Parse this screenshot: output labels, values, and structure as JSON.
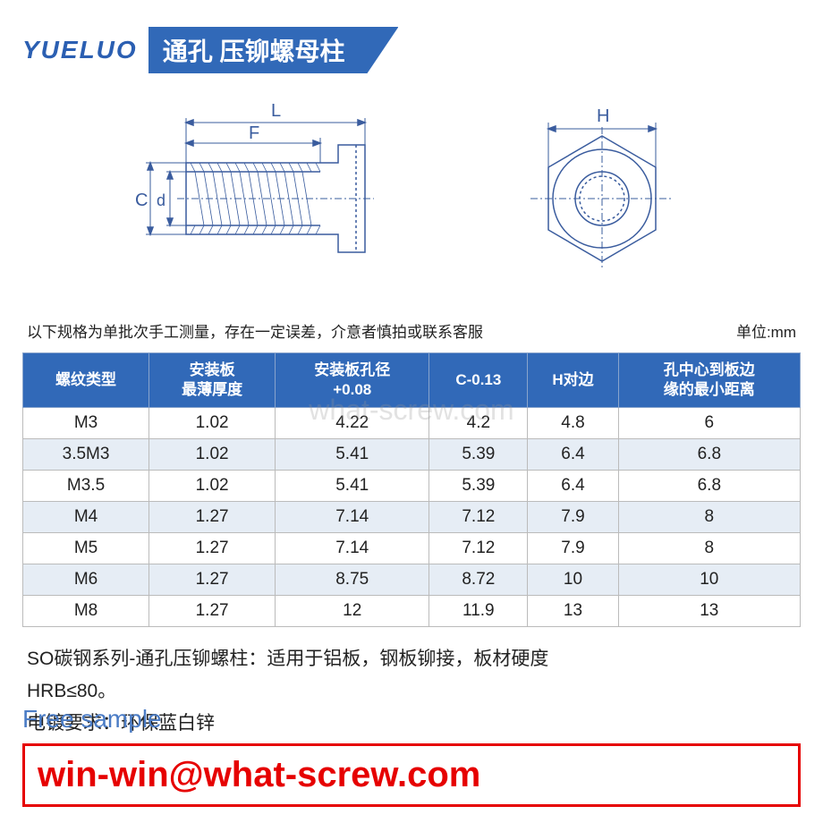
{
  "logo_text": "YUELUO",
  "banner_title": "通孔 压铆螺母柱",
  "diagram": {
    "labels": {
      "L": "L",
      "F": "F",
      "C": "C",
      "d": "d",
      "H": "H"
    },
    "stroke_color": "#3a5c9e"
  },
  "note_text": "以下规格为单批次手工测量，存在一定误差，介意者慎拍或联系客服",
  "unit_label": "单位:mm",
  "table": {
    "columns": [
      "螺纹类型",
      "安装板\n最薄厚度",
      "安装板孔径\n+0.08",
      "C-0.13",
      "H对边",
      "孔中心到板边\n缘的最小距离"
    ],
    "rows": [
      [
        "M3",
        "1.02",
        "4.22",
        "4.2",
        "4.8",
        "6"
      ],
      [
        "3.5M3",
        "1.02",
        "5.41",
        "5.39",
        "6.4",
        "6.8"
      ],
      [
        "M3.5",
        "1.02",
        "5.41",
        "5.39",
        "6.4",
        "6.8"
      ],
      [
        "M4",
        "1.27",
        "7.14",
        "7.12",
        "7.9",
        "8"
      ],
      [
        "M5",
        "1.27",
        "7.14",
        "7.12",
        "7.9",
        "8"
      ],
      [
        "M6",
        "1.27",
        "8.75",
        "8.72",
        "10",
        "10"
      ],
      [
        "M8",
        "1.27",
        "12",
        "11.9",
        "13",
        "13"
      ]
    ],
    "header_bg": "#3169b8",
    "row_alt_bg": "#e6edf5"
  },
  "desc_line1": "SO碳钢系列-通孔压铆螺柱：适用于铝板，钢板铆接，板材硬度",
  "desc_line2": "HRB≤80。",
  "desc_line3": "电镀要求：环保蓝白锌",
  "watermark": "what-screw.com",
  "free_sample": "Free sample",
  "email": "win-win@what-screw.com",
  "colors": {
    "brand_blue": "#3169b8",
    "logo_blue": "#2b5fb2",
    "email_red": "#e60000",
    "sample_blue": "#4b7cc5"
  }
}
